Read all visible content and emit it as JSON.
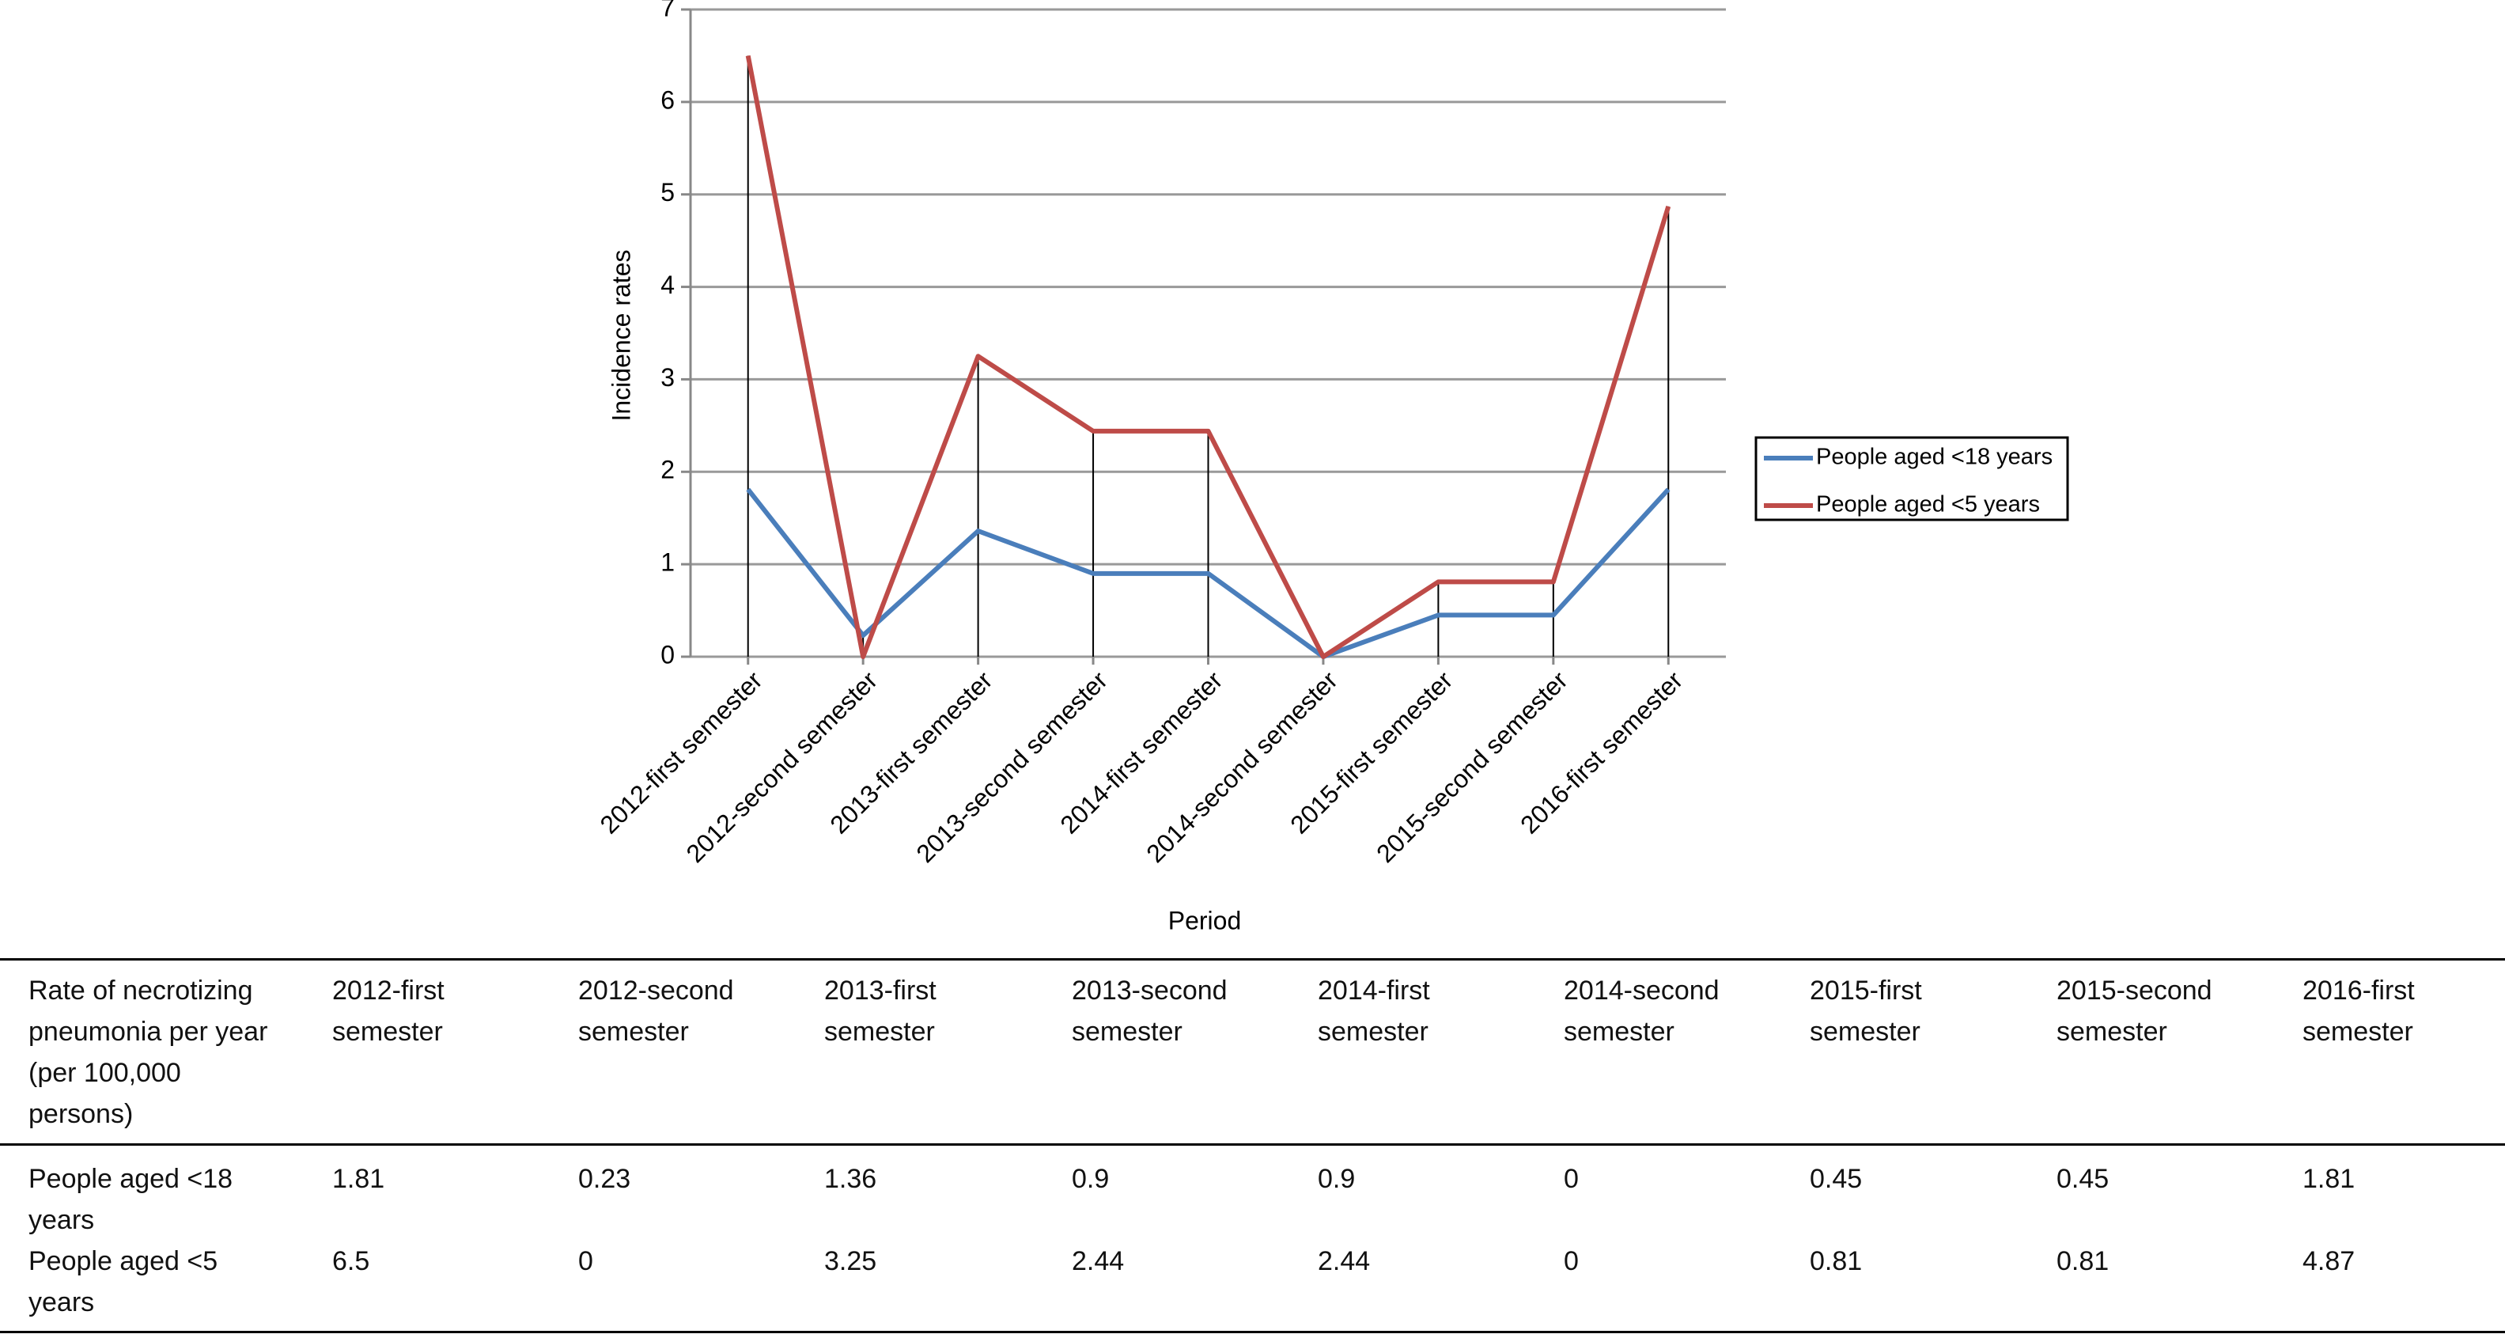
{
  "chart_data": {
    "type": "line",
    "x_label": "Period",
    "y_label": "Incidence rates",
    "categories": [
      "2012-first semester",
      "2012-second semester",
      "2013-first semester",
      "2013-second semester",
      "2014-first semester",
      "2014-second semester",
      "2015-first semester",
      "2015-second semester",
      "2016-first semester"
    ],
    "series": [
      {
        "name": "People aged <18 years",
        "color": "#4a7ebb",
        "values": [
          1.81,
          0.23,
          1.36,
          0.9,
          0.9,
          0,
          0.45,
          0.45,
          1.81
        ]
      },
      {
        "name": "People aged <5 years",
        "color": "#be4b48",
        "values": [
          6.5,
          0,
          3.25,
          2.44,
          2.44,
          0,
          0.81,
          0.81,
          4.87
        ]
      }
    ],
    "ylim": [
      0,
      7
    ],
    "yticks": [
      0,
      1,
      2,
      3,
      4,
      5,
      6,
      7
    ],
    "grid": true,
    "drop_lines": true,
    "legend": "right"
  },
  "table": {
    "header": [
      "Rate of necrotizing pneumonia per year (per 100,000 persons)",
      "2012-first semester",
      "2012-second semester",
      "2013-first semester",
      "2013-second semester",
      "2014-first semester",
      "2014-second semester",
      "2015-first semester",
      "2015-second semester",
      "2016-first semester"
    ],
    "rows": [
      [
        "People aged <18 years",
        1.81,
        0.23,
        1.36,
        0.9,
        0.9,
        0,
        0.45,
        0.45,
        1.81
      ],
      [
        "People aged <5 years",
        6.5,
        0,
        3.25,
        2.44,
        2.44,
        0,
        0.81,
        0.81,
        4.87
      ]
    ]
  }
}
